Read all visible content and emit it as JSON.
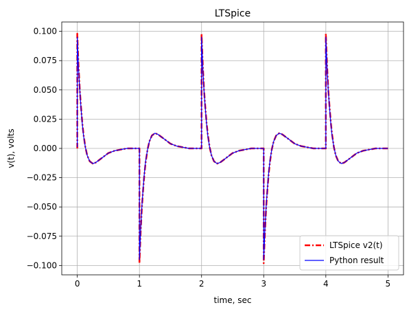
{
  "chart_data": {
    "type": "line",
    "title": "LTSpice",
    "xlabel": "time, sec",
    "ylabel": "v(t), volts",
    "xlim": [
      -0.25,
      5.25
    ],
    "ylim": [
      -0.108,
      0.108
    ],
    "xticks": [
      0,
      1,
      2,
      3,
      4,
      5
    ],
    "xtick_labels": [
      "0",
      "1",
      "2",
      "3",
      "4",
      "5"
    ],
    "yticks": [
      -0.1,
      -0.075,
      -0.05,
      -0.025,
      0,
      0.025,
      0.05,
      0.075,
      0.1
    ],
    "ytick_labels": [
      "−0.100",
      "−0.075",
      "−0.050",
      "−0.025",
      "0.000",
      "0.025",
      "0.050",
      "0.075",
      "0.100"
    ],
    "grid": true,
    "legend_position": "lower-right",
    "series": [
      {
        "name": "LTSpice v2(t)",
        "color": "#ff0000",
        "style": "dash-dot",
        "x": [
          0,
          0,
          0.01,
          0.02,
          0.04,
          0.06,
          0.08,
          0.1,
          0.13,
          0.16,
          0.2,
          0.25,
          0.3,
          0.4,
          0.5,
          0.6,
          0.7,
          0.8,
          0.9,
          1,
          1,
          1.01,
          1.02,
          1.04,
          1.06,
          1.08,
          1.1,
          1.13,
          1.16,
          1.2,
          1.25,
          1.3,
          1.4,
          1.5,
          1.6,
          1.7,
          1.8,
          1.9,
          2,
          2,
          2.01,
          2.02,
          2.04,
          2.06,
          2.08,
          2.1,
          2.13,
          2.16,
          2.2,
          2.25,
          2.3,
          2.4,
          2.5,
          2.6,
          2.7,
          2.8,
          2.9,
          3,
          3,
          3.01,
          3.02,
          3.04,
          3.06,
          3.08,
          3.1,
          3.13,
          3.16,
          3.2,
          3.25,
          3.3,
          3.4,
          3.5,
          3.6,
          3.7,
          3.8,
          3.9,
          4,
          4,
          4.01,
          4.02,
          4.04,
          4.06,
          4.08,
          4.1,
          4.13,
          4.16,
          4.2,
          4.25,
          4.3,
          4.4,
          4.5,
          4.6,
          4.7,
          4.8,
          4.9,
          5
        ],
        "y": [
          0,
          0.098,
          0.084,
          0.071,
          0.05,
          0.035,
          0.022,
          0.012,
          0.001,
          -0.006,
          -0.011,
          -0.013,
          -0.012,
          -0.008,
          -0.004,
          -0.002,
          -0.001,
          0,
          0,
          0,
          -0.098,
          -0.084,
          -0.071,
          -0.05,
          -0.035,
          -0.022,
          -0.012,
          -0.001,
          0.006,
          0.011,
          0.013,
          0.012,
          0.008,
          0.004,
          0.002,
          0.001,
          0,
          0,
          0,
          0.098,
          0.084,
          0.071,
          0.05,
          0.035,
          0.022,
          0.012,
          0.001,
          -0.006,
          -0.011,
          -0.013,
          -0.012,
          -0.008,
          -0.004,
          -0.002,
          -0.001,
          0,
          0,
          0,
          -0.098,
          -0.084,
          -0.071,
          -0.05,
          -0.035,
          -0.022,
          -0.012,
          -0.001,
          0.006,
          0.011,
          0.013,
          0.012,
          0.008,
          0.004,
          0.002,
          0.001,
          0,
          0,
          0,
          0.098,
          0.084,
          0.071,
          0.05,
          0.035,
          0.022,
          0.012,
          0.001,
          -0.006,
          -0.011,
          -0.013,
          -0.012,
          -0.008,
          -0.004,
          -0.002,
          -0.001,
          0,
          0,
          0
        ]
      },
      {
        "name": "Python result",
        "color": "#0000ff",
        "style": "solid",
        "x": [
          0,
          0,
          0.01,
          0.02,
          0.04,
          0.06,
          0.08,
          0.1,
          0.13,
          0.16,
          0.2,
          0.25,
          0.3,
          0.4,
          0.5,
          0.6,
          0.7,
          0.8,
          0.9,
          1,
          1,
          1.01,
          1.02,
          1.04,
          1.06,
          1.08,
          1.1,
          1.13,
          1.16,
          1.2,
          1.25,
          1.3,
          1.4,
          1.5,
          1.6,
          1.7,
          1.8,
          1.9,
          2,
          2,
          2.01,
          2.02,
          2.04,
          2.06,
          2.08,
          2.1,
          2.13,
          2.16,
          2.2,
          2.25,
          2.3,
          2.4,
          2.5,
          2.6,
          2.7,
          2.8,
          2.9,
          3,
          3,
          3.01,
          3.02,
          3.04,
          3.06,
          3.08,
          3.1,
          3.13,
          3.16,
          3.2,
          3.25,
          3.3,
          3.4,
          3.5,
          3.6,
          3.7,
          3.8,
          3.9,
          4,
          4,
          4.01,
          4.02,
          4.04,
          4.06,
          4.08,
          4.1,
          4.13,
          4.16,
          4.2,
          4.25,
          4.3,
          4.4,
          4.5,
          4.6,
          4.7,
          4.8,
          4.9,
          5
        ],
        "y": [
          0.001,
          0.095,
          0.082,
          0.069,
          0.049,
          0.034,
          0.021,
          0.011,
          0.001,
          -0.006,
          -0.011,
          -0.013,
          -0.012,
          -0.008,
          -0.004,
          -0.002,
          -0.001,
          0,
          0,
          0,
          -0.095,
          -0.082,
          -0.069,
          -0.049,
          -0.034,
          -0.021,
          -0.011,
          -0.001,
          0.006,
          0.011,
          0.013,
          0.012,
          0.008,
          0.004,
          0.002,
          0.001,
          0,
          0,
          0,
          0.095,
          0.082,
          0.069,
          0.049,
          0.034,
          0.021,
          0.011,
          0.001,
          -0.006,
          -0.011,
          -0.013,
          -0.012,
          -0.008,
          -0.004,
          -0.002,
          -0.001,
          0,
          0,
          0,
          -0.095,
          -0.082,
          -0.069,
          -0.049,
          -0.034,
          -0.021,
          -0.011,
          -0.001,
          0.006,
          0.011,
          0.013,
          0.012,
          0.008,
          0.004,
          0.002,
          0.001,
          0,
          0,
          0,
          0.095,
          0.082,
          0.069,
          0.049,
          0.034,
          0.021,
          0.011,
          0.001,
          -0.006,
          -0.011,
          -0.013,
          -0.012,
          -0.008,
          -0.004,
          -0.002,
          -0.001,
          0,
          0,
          0
        ]
      }
    ]
  }
}
